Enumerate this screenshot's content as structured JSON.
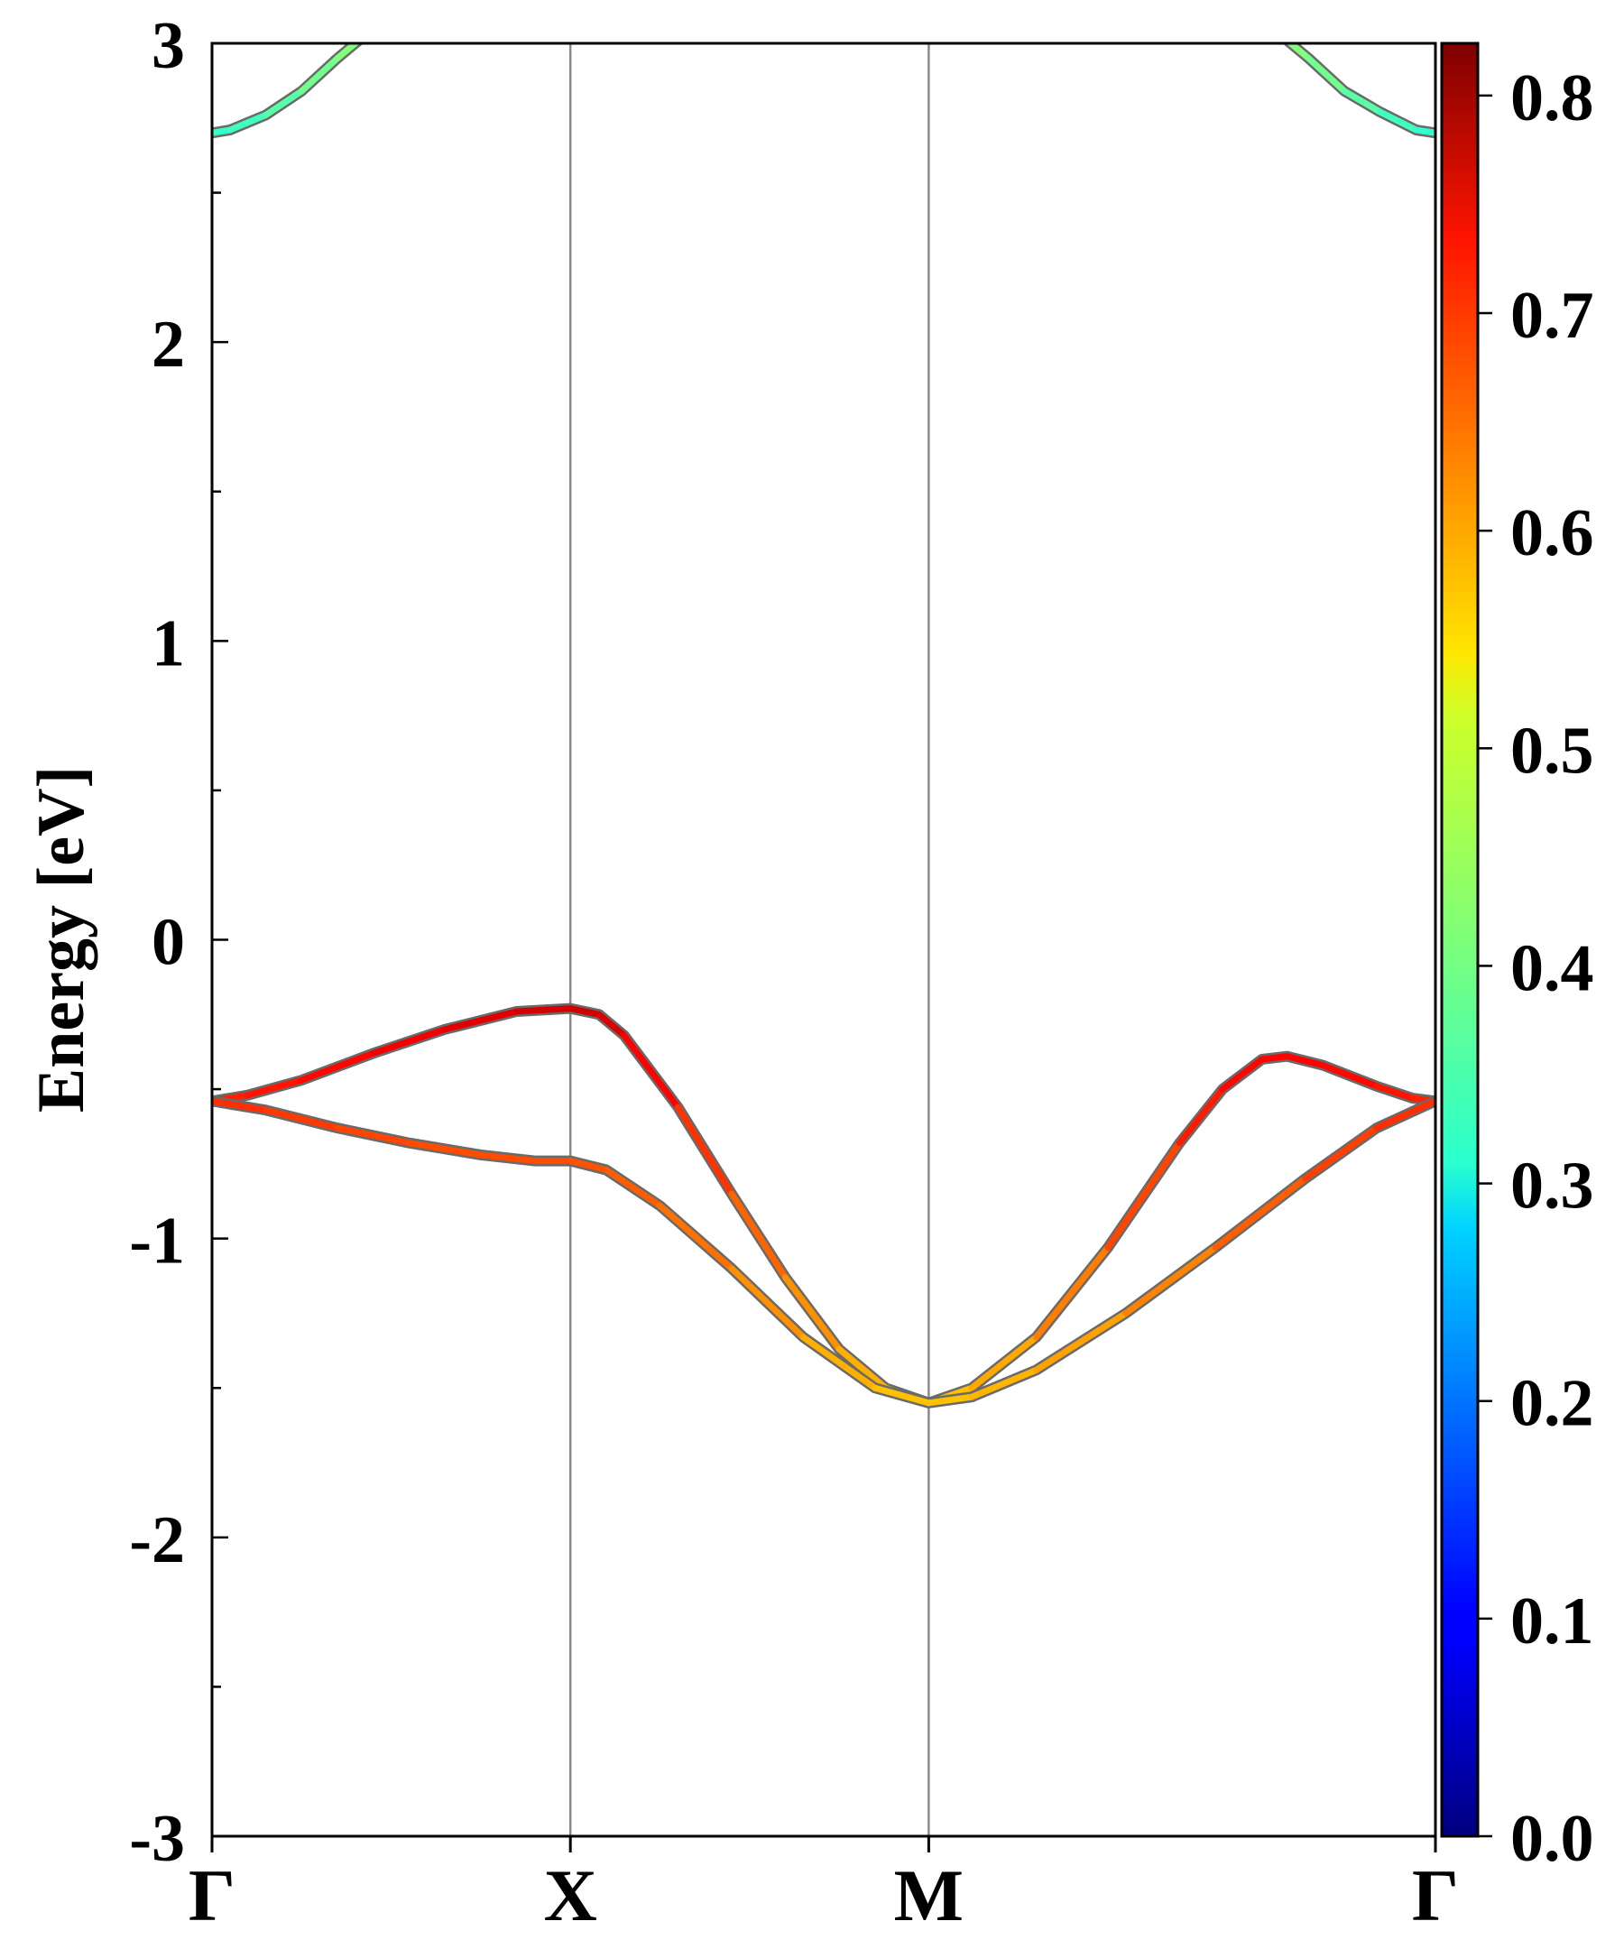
{
  "chart_data": {
    "type": "line",
    "ylabel": "Energy [eV]",
    "ylim": [
      -3,
      3
    ],
    "yticks": [
      "-3",
      "-2",
      "-1",
      "0",
      "1",
      "2",
      "3"
    ],
    "kpath": {
      "labels": [
        "Γ",
        "X",
        "M",
        "Γ"
      ],
      "positions": [
        0,
        1,
        2,
        3.414
      ]
    },
    "colorbar": {
      "colormap": "jet",
      "range": [
        0,
        0.824
      ],
      "ticks": [
        "0.0",
        "0.1",
        "0.2",
        "0.3",
        "0.4",
        "0.5",
        "0.6",
        "0.7",
        "0.8"
      ]
    },
    "bands": [
      {
        "points": [
          [
            0,
            2.7,
            0.35
          ],
          [
            0.05,
            2.71,
            0.35
          ],
          [
            0.15,
            2.76,
            0.37
          ],
          [
            0.25,
            2.84,
            0.39
          ],
          [
            0.35,
            2.95,
            0.41
          ],
          [
            0.42,
            3.02,
            0.42
          ]
        ]
      },
      {
        "points": [
          [
            2.99,
            3.02,
            0.42
          ],
          [
            3.06,
            2.95,
            0.41
          ],
          [
            3.16,
            2.84,
            0.39
          ],
          [
            3.26,
            2.77,
            0.37
          ],
          [
            3.36,
            2.71,
            0.35
          ],
          [
            3.414,
            2.7,
            0.35
          ]
        ]
      },
      {
        "points": [
          [
            0,
            -0.54,
            0.69
          ],
          [
            0.1,
            -0.52,
            0.7
          ],
          [
            0.25,
            -0.47,
            0.71
          ],
          [
            0.45,
            -0.38,
            0.72
          ],
          [
            0.65,
            -0.3,
            0.74
          ],
          [
            0.85,
            -0.24,
            0.75
          ],
          [
            1,
            -0.23,
            0.76
          ],
          [
            1.08,
            -0.25,
            0.76
          ],
          [
            1.15,
            -0.32,
            0.74
          ],
          [
            1.3,
            -0.56,
            0.7
          ],
          [
            1.45,
            -0.85,
            0.66
          ],
          [
            1.6,
            -1.13,
            0.62
          ],
          [
            1.75,
            -1.37,
            0.59
          ],
          [
            1.88,
            -1.5,
            0.57
          ],
          [
            2,
            -1.55,
            0.56
          ],
          [
            2.12,
            -1.5,
            0.57
          ],
          [
            2.3,
            -1.33,
            0.6
          ],
          [
            2.5,
            -1.03,
            0.64
          ],
          [
            2.7,
            -0.68,
            0.69
          ],
          [
            2.82,
            -0.5,
            0.71
          ],
          [
            2.93,
            -0.4,
            0.72
          ],
          [
            3,
            -0.39,
            0.72
          ],
          [
            3.1,
            -0.42,
            0.72
          ],
          [
            3.25,
            -0.49,
            0.71
          ],
          [
            3.35,
            -0.53,
            0.7
          ],
          [
            3.414,
            -0.54,
            0.69
          ]
        ]
      },
      {
        "points": [
          [
            0,
            -0.54,
            0.69
          ],
          [
            0.15,
            -0.57,
            0.68
          ],
          [
            0.35,
            -0.63,
            0.67
          ],
          [
            0.55,
            -0.68,
            0.66
          ],
          [
            0.75,
            -0.72,
            0.66
          ],
          [
            0.9,
            -0.74,
            0.66
          ],
          [
            1,
            -0.74,
            0.66
          ],
          [
            1.1,
            -0.77,
            0.65
          ],
          [
            1.25,
            -0.89,
            0.64
          ],
          [
            1.45,
            -1.1,
            0.62
          ],
          [
            1.65,
            -1.33,
            0.59
          ],
          [
            1.85,
            -1.5,
            0.57
          ],
          [
            2,
            -1.55,
            0.56
          ],
          [
            2.12,
            -1.53,
            0.57
          ],
          [
            2.3,
            -1.44,
            0.58
          ],
          [
            2.55,
            -1.25,
            0.6
          ],
          [
            2.8,
            -1.03,
            0.63
          ],
          [
            3.05,
            -0.8,
            0.66
          ],
          [
            3.25,
            -0.63,
            0.68
          ],
          [
            3.414,
            -0.54,
            0.69
          ]
        ]
      }
    ]
  }
}
